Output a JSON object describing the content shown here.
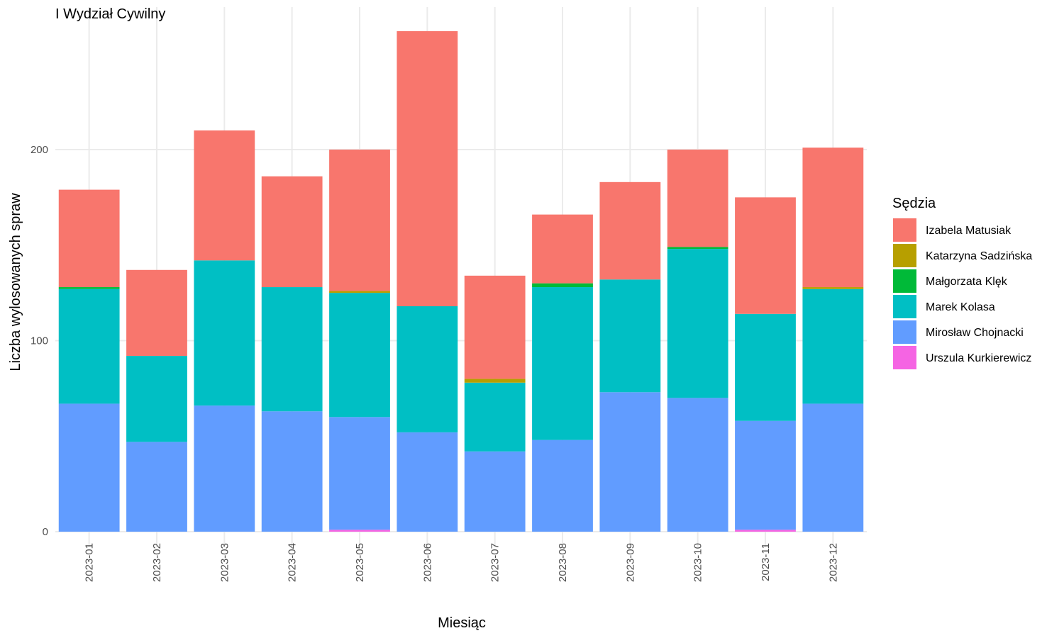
{
  "chart_data": {
    "type": "bar",
    "stacked": true,
    "title": "I Wydział Cywilny",
    "xlabel": "Miesiąc",
    "ylabel": "Liczba wylosowanych spraw",
    "ylim": [
      0,
      275
    ],
    "yticks": [
      0,
      100,
      200
    ],
    "grid": true,
    "legend_title": "Sędzia",
    "legend_position": "right",
    "categories": [
      "2023-01",
      "2023-02",
      "2023-03",
      "2023-04",
      "2023-05",
      "2023-06",
      "2023-07",
      "2023-08",
      "2023-09",
      "2023-10",
      "2023-11",
      "2023-12"
    ],
    "series": [
      {
        "name": "Urszula Kurkierewicz",
        "color": "#F564E3",
        "values": [
          0,
          0,
          0,
          0,
          1,
          0,
          0,
          0,
          0,
          0,
          1,
          0
        ]
      },
      {
        "name": "Mirosław Chojnacki",
        "color": "#619CFF",
        "values": [
          67,
          47,
          66,
          63,
          59,
          52,
          42,
          48,
          73,
          70,
          57,
          67
        ]
      },
      {
        "name": "Marek Kolasa",
        "color": "#00BFC4",
        "values": [
          60,
          45,
          76,
          65,
          65,
          66,
          36,
          80,
          59,
          78,
          56,
          60
        ]
      },
      {
        "name": "Małgorzata Klęk",
        "color": "#00BA38",
        "values": [
          1,
          0,
          0,
          0,
          0,
          0,
          0,
          2,
          0,
          1,
          0,
          0
        ]
      },
      {
        "name": "Katarzyna Sadzińska",
        "color": "#B79F00",
        "values": [
          0,
          0,
          0,
          0,
          1,
          0,
          2,
          0,
          0,
          0,
          0,
          1
        ]
      },
      {
        "name": "Izabela Matusiak",
        "color": "#F8766D",
        "values": [
          51,
          45,
          68,
          58,
          74,
          144,
          54,
          36,
          51,
          51,
          61,
          73
        ]
      }
    ],
    "legend_order": [
      "Izabela Matusiak",
      "Katarzyna Sadzińska",
      "Małgorzata Klęk",
      "Marek Kolasa",
      "Mirosław Chojnacki",
      "Urszula Kurkierewicz"
    ]
  }
}
